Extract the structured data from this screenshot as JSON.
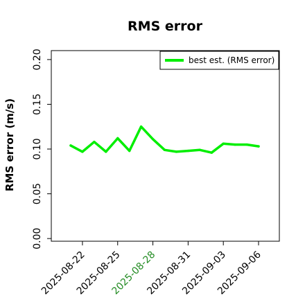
{
  "chart_data": {
    "type": "line",
    "title": "RMS error",
    "xlabel": "",
    "ylabel": "RMS error (m/s)",
    "x": [
      "2025-08-21",
      "2025-08-22",
      "2025-08-23",
      "2025-08-24",
      "2025-08-25",
      "2025-08-26",
      "2025-08-27",
      "2025-08-28",
      "2025-08-29",
      "2025-08-30",
      "2025-08-31",
      "2025-09-01",
      "2025-09-02",
      "2025-09-03",
      "2025-09-04",
      "2025-09-05",
      "2025-09-06"
    ],
    "series": [
      {
        "name": "best est. (RMS error)",
        "color": "#00ee00",
        "values": [
          0.104,
          0.097,
          0.108,
          0.097,
          0.112,
          0.098,
          0.125,
          0.111,
          0.099,
          0.097,
          0.098,
          0.099,
          0.096,
          0.106,
          0.105,
          0.105,
          0.103
        ]
      }
    ],
    "ylim": [
      -0.003,
      0.21
    ],
    "yticks": [
      "0.00",
      "0.05",
      "0.10",
      "0.15",
      "0.20"
    ],
    "xticks": [
      "2025-08-22",
      "2025-08-25",
      "2025-08-28",
      "2025-08-31",
      "2025-09-03",
      "2025-09-06"
    ],
    "highlight_tick": "2025-08-28",
    "highlight_color": "#228b22",
    "grid": false,
    "legend_position": "top-right"
  }
}
